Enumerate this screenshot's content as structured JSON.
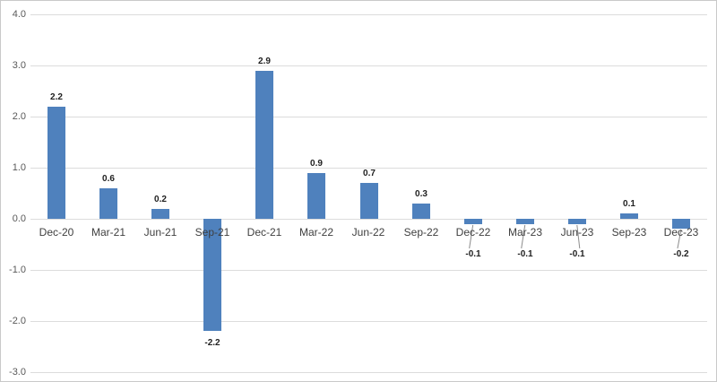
{
  "chart": {
    "background_color": "#FFFFFF",
    "frame_border_color": "#C9C9C9"
  },
  "chart_data": {
    "type": "bar",
    "categories": [
      "Dec-20",
      "Mar-21",
      "Jun-21",
      "Sep-21",
      "Dec-21",
      "Mar-22",
      "Jun-22",
      "Sep-22",
      "Dec-22",
      "Mar-23",
      "Jun-23",
      "Sep-23",
      "Dec-23"
    ],
    "values": [
      2.2,
      0.6,
      0.2,
      -2.2,
      2.9,
      0.9,
      0.7,
      0.3,
      -0.1,
      -0.1,
      -0.1,
      0.1,
      -0.2
    ],
    "data_labels": [
      "2.2",
      "0.6",
      "0.2",
      "-2.2",
      "2.9",
      "0.9",
      "0.7",
      "0.3",
      "-0.1",
      "-0.1",
      "-0.1",
      "0.1",
      "-0.2"
    ],
    "ylim": [
      -3.0,
      4.0
    ],
    "ytick_step": 1.0,
    "yticks": [
      4.0,
      3.0,
      2.0,
      1.0,
      0.0,
      -1.0,
      -2.0,
      -3.0
    ],
    "ytick_labels": [
      "4.0",
      "3.0",
      "2.0",
      "1.0",
      "0.0",
      "-1.0",
      "-2.0",
      "-3.0"
    ],
    "grid": true,
    "legend": "none",
    "bar_color": "#4F81BD",
    "gridline_color": "#DCDCDC",
    "ytick_label_color": "#595959",
    "category_label_color": "#3F3F3F",
    "data_label_color": "#1F1F1F",
    "leader_line_color": "#8C8C8C",
    "leader_label_categories": [
      "Dec-22",
      "Mar-23",
      "Jun-23",
      "Dec-23"
    ]
  }
}
